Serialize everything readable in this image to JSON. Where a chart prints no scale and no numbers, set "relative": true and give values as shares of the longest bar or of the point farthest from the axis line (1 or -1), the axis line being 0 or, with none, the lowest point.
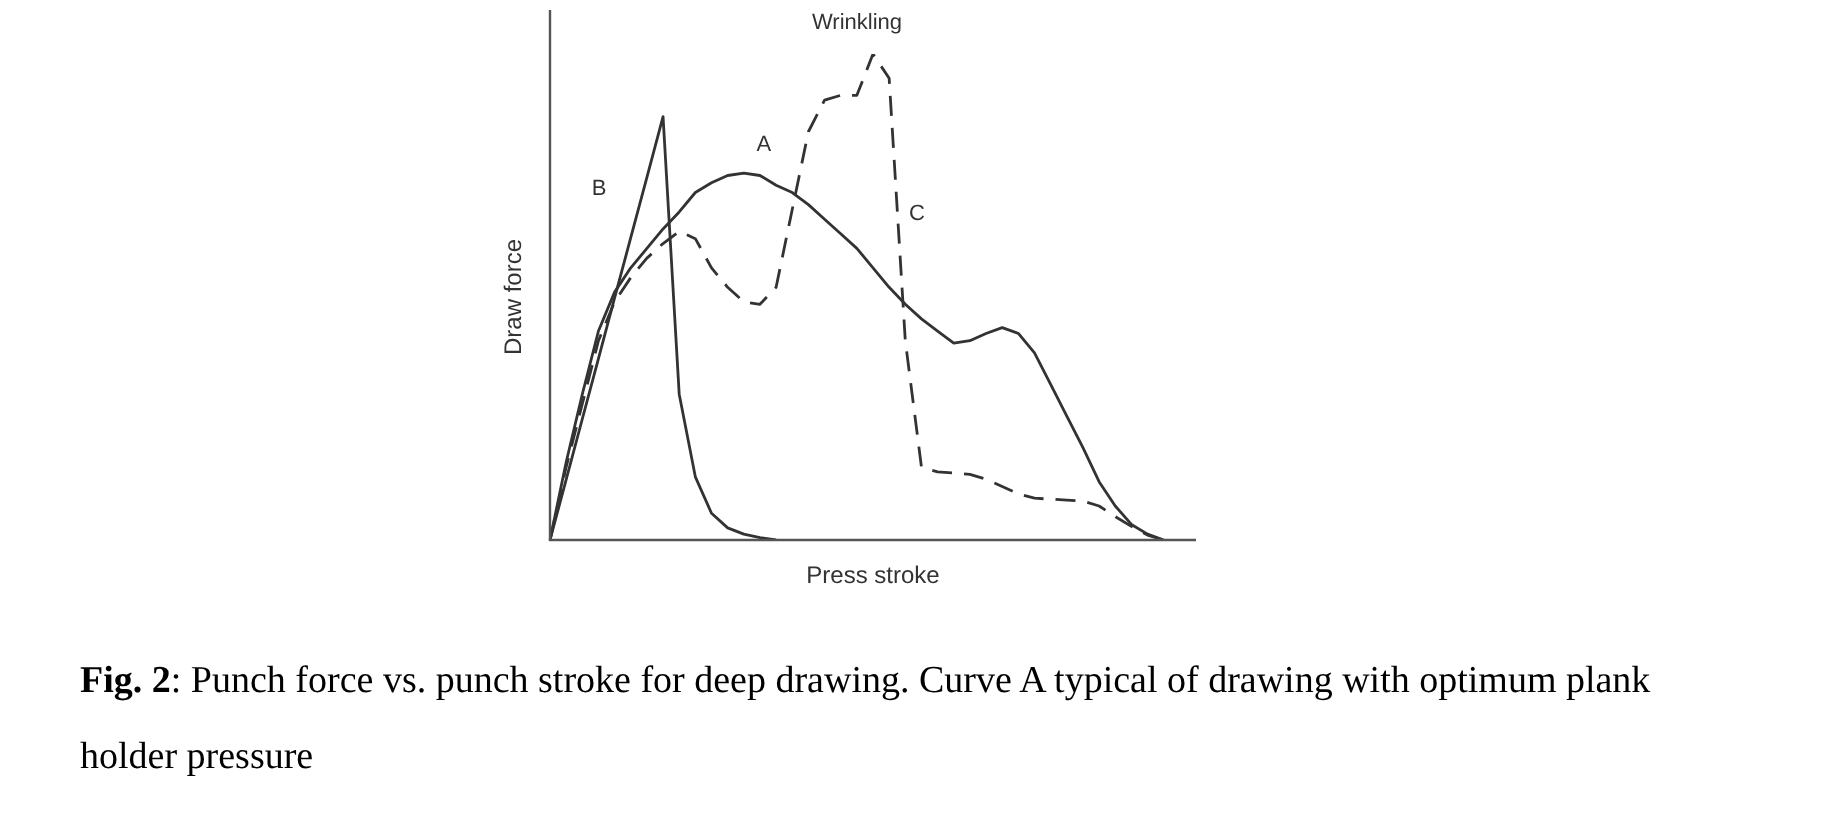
{
  "chart_data": {
    "type": "line",
    "relative": true,
    "xlabel": "Press stroke",
    "ylabel": "Draw force",
    "legend": false,
    "marker": "none",
    "categories": [
      null,
      null,
      null,
      null,
      null,
      null,
      null,
      null,
      null,
      null,
      null,
      null,
      null,
      null,
      null,
      null,
      null,
      null,
      null,
      null,
      null,
      null,
      null,
      null,
      null,
      null,
      null,
      null,
      null,
      null,
      null,
      null,
      null,
      null,
      null,
      null,
      null,
      null,
      null,
      null,
      null
    ],
    "series": [
      {
        "name": "A",
        "color": "#333333",
        "line_style": "solid",
        "values": [
          0,
          0.16,
          0.3,
          0.43,
          0.51,
          0.56,
          0.6,
          0.64,
          0.675,
          0.715,
          0.735,
          0.75,
          0.755,
          0.75,
          0.73,
          0.715,
          0.69,
          0.66,
          0.63,
          0.6,
          0.56,
          0.52,
          0.485,
          0.455,
          0.43,
          0.405,
          0.41,
          0.425,
          0.437,
          0.425,
          0.385,
          0.32,
          0.255,
          0.19,
          0.12,
          0.07,
          0.032,
          0.012,
          0,
          null,
          null
        ]
      },
      {
        "name": "B",
        "color": "#333333",
        "line_style": "solid",
        "values": [
          0,
          0.124,
          0.249,
          0.373,
          0.498,
          0.622,
          0.746,
          0.871,
          0.3,
          0.13,
          0.055,
          0.025,
          0.012,
          0.005,
          0,
          null,
          null,
          null,
          null,
          null,
          null,
          null,
          null,
          null,
          null,
          null,
          null,
          null,
          null,
          null,
          null,
          null,
          null,
          null,
          null,
          null,
          null,
          null,
          null,
          null,
          null
        ]
      },
      {
        "name": "C",
        "color": "#333333",
        "line_style": "dashed",
        "values": [
          0,
          0.15,
          0.28,
          0.41,
          0.49,
          0.54,
          0.58,
          0.61,
          0.635,
          0.62,
          0.56,
          0.52,
          0.49,
          0.485,
          0.52,
          0.68,
          0.84,
          0.905,
          0.915,
          0.915,
          1,
          0.95,
          0.41,
          0.15,
          0.14,
          0.138,
          0.135,
          0.125,
          0.11,
          0.095,
          0.086,
          0.084,
          0.082,
          0.08,
          0.07,
          0.048,
          0.028,
          0.01,
          0,
          null,
          null
        ]
      }
    ],
    "annotations": [
      "Wrinkling",
      "Fig. 2: Punch force vs. punch stroke for deep drawing. Curve A typical of drawing with optimum plank holder pressure"
    ]
  }
}
